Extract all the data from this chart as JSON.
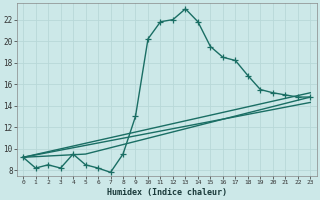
{
  "xlabel": "Humidex (Indice chaleur)",
  "bg_color": "#cce8e8",
  "grid_color": "#b8d8d8",
  "line_color": "#1a6e64",
  "xlim": [
    -0.5,
    23.5
  ],
  "ylim": [
    7.5,
    23.5
  ],
  "yticks": [
    8,
    10,
    12,
    14,
    16,
    18,
    20,
    22
  ],
  "xticks": [
    0,
    1,
    2,
    3,
    4,
    5,
    6,
    7,
    8,
    9,
    10,
    11,
    12,
    13,
    14,
    15,
    16,
    17,
    18,
    19,
    20,
    21,
    22,
    23
  ],
  "line1_x": [
    0,
    1,
    2,
    3,
    4,
    5,
    6,
    7,
    8,
    9,
    10,
    11,
    12,
    13,
    14,
    15,
    16,
    17,
    18,
    19,
    20,
    21,
    22,
    23
  ],
  "line1_y": [
    9.2,
    8.2,
    8.5,
    8.2,
    9.5,
    8.5,
    8.2,
    7.8,
    9.5,
    13.0,
    20.2,
    21.8,
    22.0,
    23.0,
    21.8,
    19.5,
    18.5,
    18.2,
    16.8,
    15.5,
    15.2,
    15.0,
    14.8,
    14.8
  ],
  "line2_x": [
    0,
    5,
    23
  ],
  "line2_y": [
    9.2,
    9.5,
    14.8
  ],
  "line3_x": [
    0,
    23
  ],
  "line3_y": [
    9.2,
    15.2
  ],
  "line4_x": [
    0,
    23
  ],
  "line4_y": [
    9.2,
    14.3
  ]
}
